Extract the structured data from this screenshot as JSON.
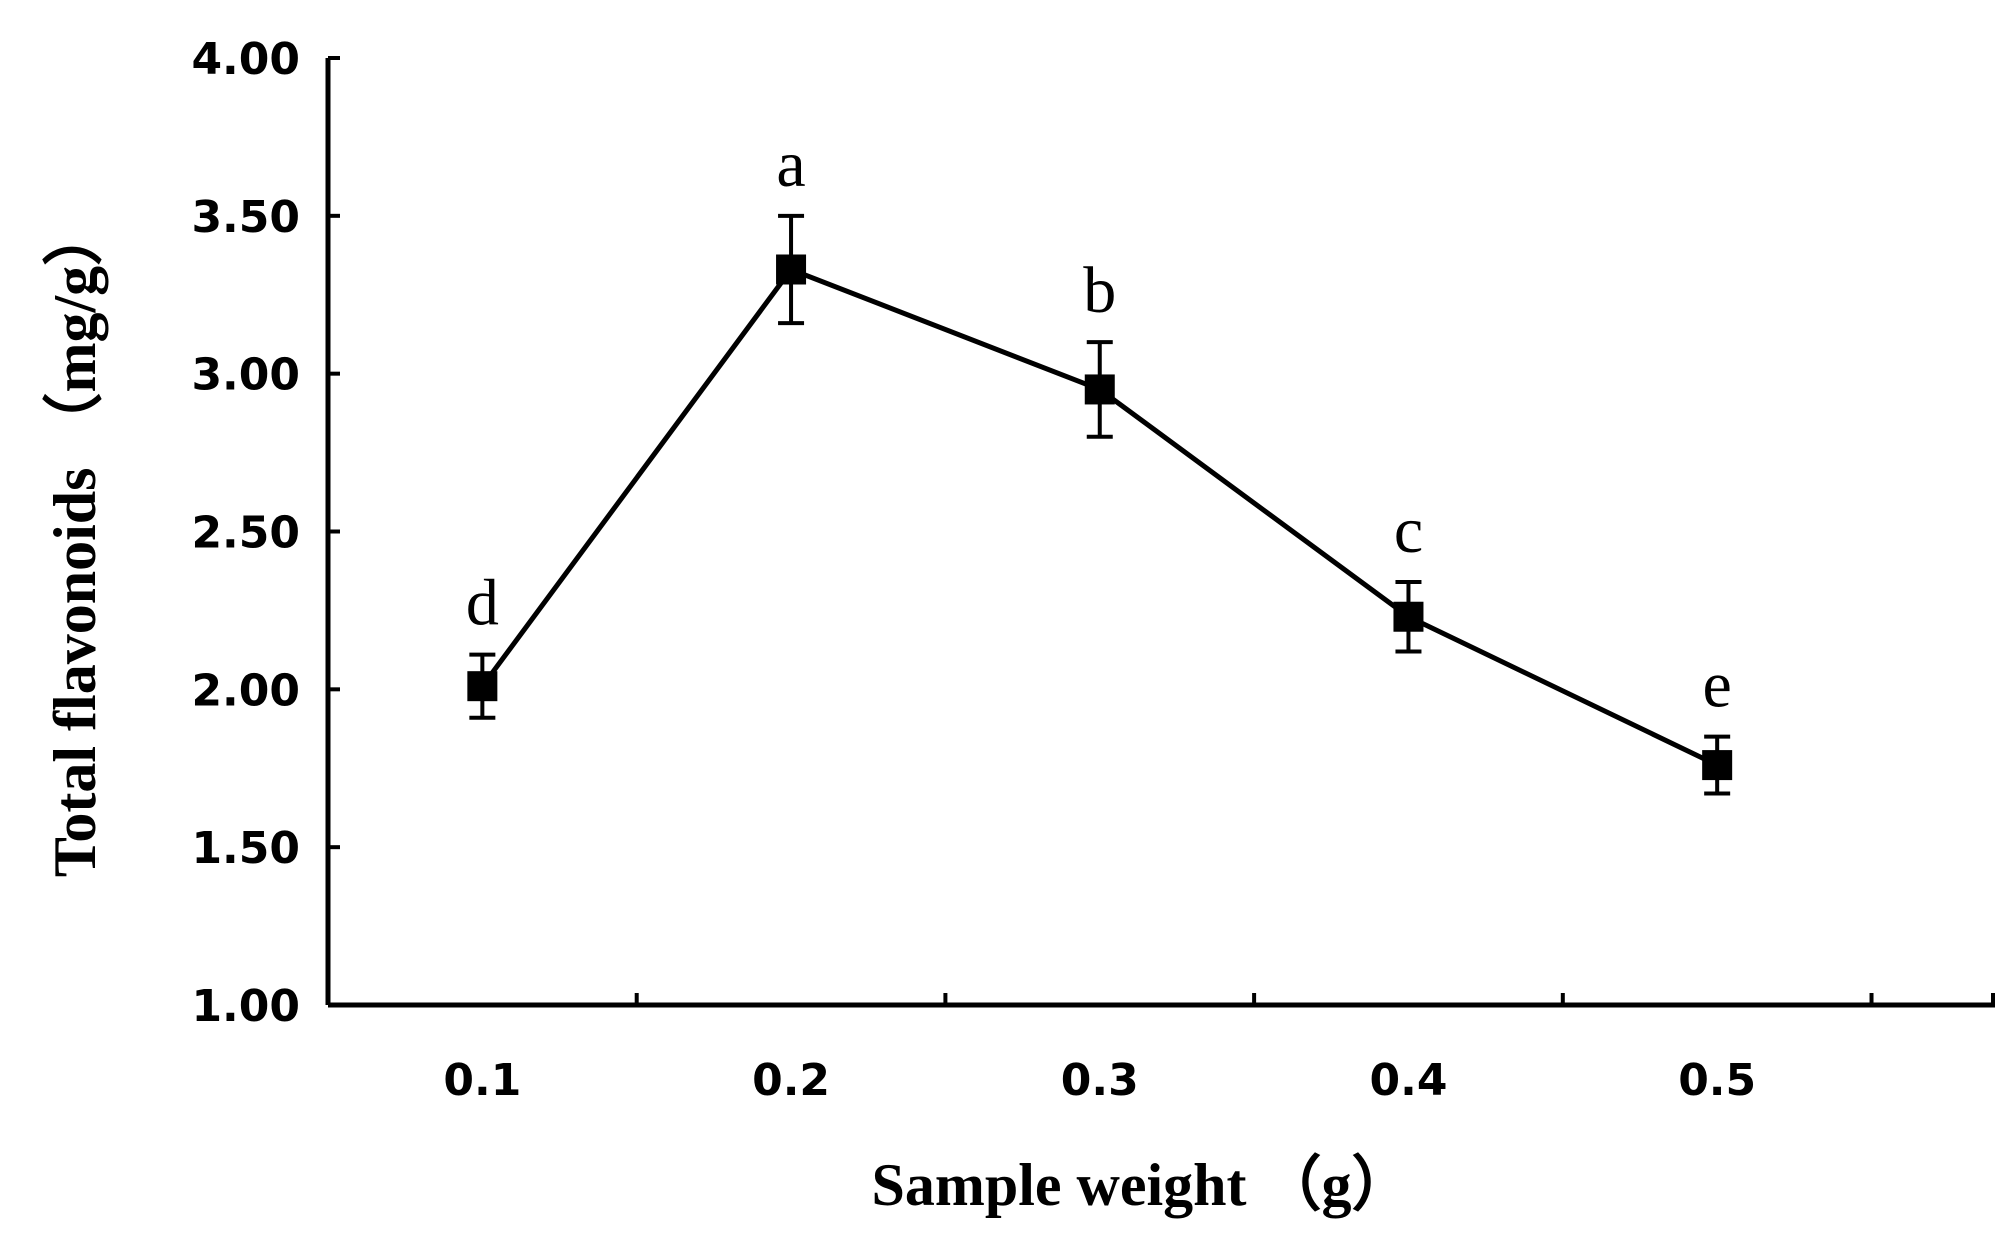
{
  "chart_data": {
    "type": "line",
    "title": "",
    "xlabel": "Sample weight （g）",
    "ylabel": "Total flavonoids （mg/g）",
    "categories": [
      "0.1",
      "0.2",
      "0.3",
      "0.4",
      "0.5"
    ],
    "ylim": [
      1.0,
      4.0
    ],
    "yticks": [
      "1.00",
      "1.50",
      "2.00",
      "2.50",
      "3.00",
      "3.50",
      "4.00"
    ],
    "grid": false,
    "legend": "none",
    "series": [
      {
        "values": [
          2.01,
          3.33,
          2.95,
          2.23,
          1.76
        ],
        "errors": [
          0.1,
          0.17,
          0.15,
          0.11,
          0.09
        ],
        "significance": [
          "d",
          "a",
          "b",
          "c",
          "e"
        ],
        "color": "#000000",
        "marker": "square"
      }
    ]
  }
}
